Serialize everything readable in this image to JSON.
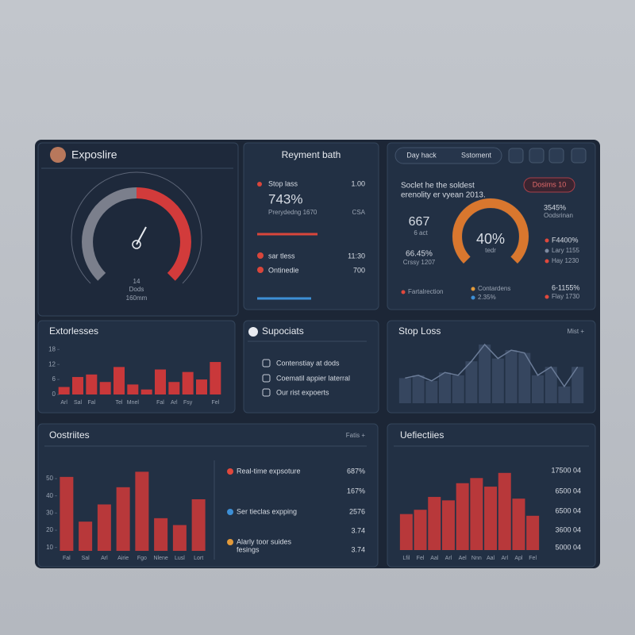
{
  "profile": {
    "title": "Exposlire"
  },
  "gauge": {
    "labels": [
      "14",
      "Dods",
      "160mm"
    ]
  },
  "payment": {
    "title": "Reyment bath",
    "stop": "Stop lass",
    "stop_value": "1.00",
    "big": "743%",
    "sub": "Prerydedng 1670",
    "sub_value": "CSA",
    "rows": [
      {
        "label": "sar tless",
        "value": "11:30"
      },
      {
        "label": "Ontinedie",
        "value": "700"
      }
    ]
  },
  "summary": {
    "buttons": [
      "Day hack",
      "Sstoment"
    ],
    "headline": [
      "Soclet he the soldest",
      "erenolity er vyean 2013."
    ],
    "badge": "Dosims 10",
    "left": [
      "667",
      "6 act",
      "66.45%",
      "Crssy 1207"
    ],
    "center": [
      "40%",
      "tedr"
    ],
    "right": [
      "3545%",
      "Oodsrinan"
    ],
    "legend": [
      "F4400%",
      "Lary 1155",
      "Hay 1230"
    ],
    "footer": [
      "Fartalrection",
      "Contardens",
      "2.35%",
      "6-1155%",
      "Flay 1730"
    ]
  },
  "expenses": {
    "title": "Extorlesses",
    "ylim": [
      0,
      20
    ],
    "yticks": [
      18,
      12,
      6,
      0
    ],
    "categories": [
      "Arl",
      "Sal",
      "Fal",
      null,
      "Tel",
      "Mnel",
      null,
      "Fal",
      "Arl",
      "Fsy",
      null,
      "Fel"
    ],
    "values": [
      3,
      7,
      8,
      5,
      11,
      4,
      2,
      10,
      5,
      9,
      6,
      13
    ],
    "color": "#c9383a"
  },
  "support": {
    "title": "Supociats",
    "items": [
      "Contenstiay at dods",
      "Coematil appier laterral",
      "Our rist expoerts"
    ]
  },
  "stoploss": {
    "title": "Stop Loss",
    "action": "Mist +",
    "ylim": [
      0,
      50
    ],
    "values": [
      18,
      20,
      16,
      22,
      20,
      30,
      42,
      32,
      38,
      36,
      20,
      26,
      12,
      26
    ],
    "color": "#36465f"
  },
  "outcomes": {
    "title": "Oostriites",
    "action": "Fatis +",
    "ylim": [
      8,
      56
    ],
    "yticks": [
      50,
      40,
      30,
      20,
      10
    ],
    "categories": [
      "Fal",
      "Sal",
      "Arl",
      "Airie",
      "Fgo",
      "Nlene",
      "Lusl",
      "Lort"
    ],
    "values": [
      51,
      25,
      35,
      45,
      54,
      27,
      23,
      38
    ],
    "color": "#b8383a",
    "rows": [
      {
        "label": "Real-time expsoture",
        "value": "687%",
        "color": "#e0483c"
      },
      {
        "value": "167%"
      },
      {
        "label": "Ser tieclas expping",
        "value": "2576",
        "color": "#3d8fd6"
      },
      {
        "value": "3.74"
      },
      {
        "label": "Alarly toor suides",
        "label2": "fesings",
        "value": "3.74",
        "color": "#e39a3a"
      }
    ]
  },
  "unfettered": {
    "title": "Uefiectiies",
    "labels": [
      "17500 04",
      "6500 04",
      "6500 04",
      "3600 04",
      "5000 04"
    ],
    "ylim": [
      0,
      100
    ],
    "categories": [
      "Lfil",
      "Fel",
      "Aal",
      "Arl",
      "Ael",
      "Nnn",
      "Aal",
      "Arl",
      "Apl",
      "Fel"
    ],
    "values": [
      42,
      47,
      62,
      58,
      78,
      84,
      74,
      90,
      60,
      40
    ],
    "color": "#b8383a"
  }
}
